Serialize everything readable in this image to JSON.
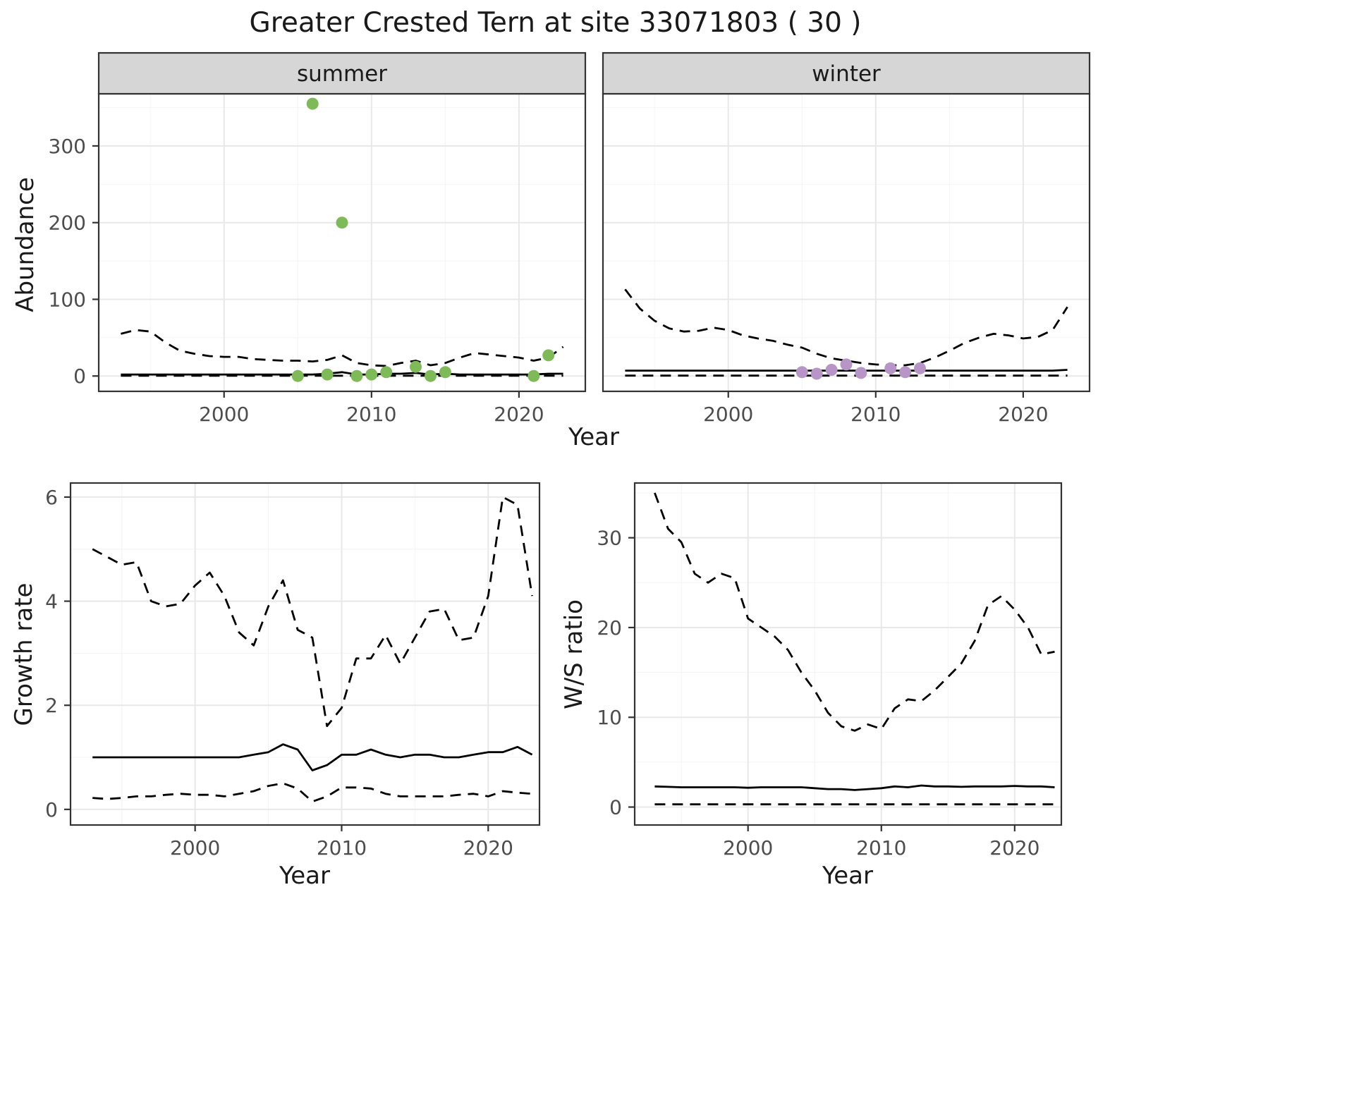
{
  "figure": {
    "title": "Greater Crested Tern at site 33071803 ( 30 )"
  },
  "theme": {
    "background": "#ffffff",
    "panel_bg": "#ffffff",
    "panel_border": "#333333",
    "grid_major": "#e8e8e8",
    "grid_minor": "#f4f4f4",
    "strip_fill": "#d6d6d6",
    "line_color": "#000000",
    "summer_point_color": "#7fba58",
    "winter_point_color": "#b795c7",
    "tick_text": "#4d4d4d",
    "text_color": "#1a1a1a"
  },
  "chart_data": [
    {
      "type": "line+scatter",
      "id": "abundance_summer",
      "facet_label": "summer",
      "xlabel": "Year",
      "ylabel": "Abundance",
      "x_domain": [
        1991.5,
        2024.5
      ],
      "y_domain": [
        -20,
        368
      ],
      "x_ticks": [
        2000,
        2010,
        2020
      ],
      "y_ticks": [
        0,
        100,
        200,
        300
      ],
      "x": [
        1993,
        1994,
        1995,
        1996,
        1997,
        1998,
        1999,
        2000,
        2001,
        2002,
        2003,
        2004,
        2005,
        2006,
        2007,
        2008,
        2009,
        2010,
        2011,
        2012,
        2013,
        2014,
        2015,
        2016,
        2017,
        2018,
        2019,
        2020,
        2021,
        2022,
        2023
      ],
      "series": [
        {
          "name": "upper_95ci",
          "style": "dashed",
          "values": [
            55,
            60,
            58,
            44,
            33,
            29,
            26,
            25,
            25,
            22,
            21,
            20,
            20,
            19,
            21,
            27,
            17,
            14,
            13,
            17,
            20,
            14,
            17,
            24,
            30,
            28,
            26,
            24,
            20,
            24,
            38
          ]
        },
        {
          "name": "median",
          "style": "solid",
          "values": [
            2,
            2,
            2,
            2,
            2,
            2,
            2,
            2,
            2,
            2,
            2,
            2,
            2,
            2,
            3,
            5,
            2,
            2,
            3,
            3,
            4,
            2,
            3,
            2,
            2,
            2,
            2,
            2,
            2,
            3,
            3
          ]
        },
        {
          "name": "lower_95ci",
          "style": "dashed",
          "values": [
            0.3,
            0.3,
            0.3,
            0.3,
            0.3,
            0.3,
            0.3,
            0.3,
            0.3,
            0.3,
            0.3,
            0.3,
            0.3,
            0.3,
            0.3,
            0.3,
            0.3,
            0.3,
            0.3,
            0.3,
            0.3,
            0.3,
            0.3,
            0.3,
            0.3,
            0.3,
            0.3,
            0.3,
            0.3,
            0.3,
            0.3
          ]
        }
      ],
      "points": {
        "name": "observed_counts",
        "color_key": "summer_point_color",
        "x": [
          2005,
          2006,
          2007,
          2008,
          2009,
          2010,
          2011,
          2013,
          2014,
          2015,
          2021,
          2022
        ],
        "y": [
          0,
          355,
          2,
          200,
          0,
          2,
          5,
          12,
          0,
          5,
          0,
          27
        ]
      }
    },
    {
      "type": "line+scatter",
      "id": "abundance_winter",
      "facet_label": "winter",
      "xlabel": "Year",
      "ylabel": "Abundance",
      "x_domain": [
        1991.5,
        2024.5
      ],
      "y_domain": [
        -20,
        368
      ],
      "x_ticks": [
        2000,
        2010,
        2020
      ],
      "y_ticks": [
        0,
        100,
        200,
        300
      ],
      "x": [
        1993,
        1994,
        1995,
        1996,
        1997,
        1998,
        1999,
        2000,
        2001,
        2002,
        2003,
        2004,
        2005,
        2006,
        2007,
        2008,
        2009,
        2010,
        2011,
        2012,
        2013,
        2014,
        2015,
        2016,
        2017,
        2018,
        2019,
        2020,
        2021,
        2022,
        2023
      ],
      "series": [
        {
          "name": "upper_95ci",
          "style": "dashed",
          "values": [
            113,
            88,
            72,
            62,
            58,
            59,
            63,
            60,
            53,
            49,
            46,
            41,
            37,
            29,
            23,
            20,
            17,
            15,
            14,
            14,
            17,
            24,
            33,
            43,
            50,
            55,
            53,
            49,
            51,
            60,
            90
          ]
        },
        {
          "name": "median",
          "style": "solid",
          "values": [
            7,
            7,
            7,
            7,
            7,
            7,
            7,
            7,
            7,
            7,
            7,
            7,
            7,
            7,
            7,
            7,
            7,
            7,
            7,
            7,
            7,
            7,
            7,
            7,
            7,
            7,
            7,
            7,
            7,
            7,
            8
          ]
        },
        {
          "name": "lower_95ci",
          "style": "dashed",
          "values": [
            0.5,
            0.5,
            0.5,
            0.5,
            0.5,
            0.5,
            0.5,
            0.5,
            0.5,
            0.5,
            0.5,
            0.5,
            0.5,
            0.5,
            0.5,
            0.5,
            0.5,
            0.5,
            0.5,
            0.5,
            0.5,
            0.5,
            0.5,
            0.5,
            0.5,
            0.5,
            0.5,
            0.5,
            0.5,
            0.5,
            0.5
          ]
        }
      ],
      "points": {
        "name": "observed_counts",
        "color_key": "winter_point_color",
        "x": [
          2005,
          2006,
          2007,
          2008,
          2009,
          2011,
          2012,
          2013
        ],
        "y": [
          5,
          3,
          8,
          15,
          4,
          10,
          5,
          10
        ]
      }
    },
    {
      "type": "line",
      "id": "growth_rate",
      "facet_label": "",
      "xlabel": "Year",
      "ylabel": "Growth rate",
      "x_domain": [
        1991.5,
        2023.5
      ],
      "y_domain": [
        -0.3,
        6.27
      ],
      "x_ticks": [
        2000,
        2010,
        2020
      ],
      "y_ticks": [
        0,
        2,
        4,
        6
      ],
      "x": [
        1993,
        1994,
        1995,
        1996,
        1997,
        1998,
        1999,
        2000,
        2001,
        2002,
        2003,
        2004,
        2005,
        2006,
        2007,
        2008,
        2009,
        2010,
        2011,
        2012,
        2013,
        2014,
        2015,
        2016,
        2017,
        2018,
        2019,
        2020,
        2021,
        2022,
        2023
      ],
      "series": [
        {
          "name": "upper_95ci",
          "style": "dashed",
          "values": [
            5.0,
            4.85,
            4.7,
            4.75,
            4.0,
            3.9,
            3.95,
            4.3,
            4.55,
            4.1,
            3.4,
            3.15,
            3.9,
            4.4,
            3.45,
            3.3,
            1.6,
            1.95,
            2.9,
            2.9,
            3.35,
            2.8,
            3.3,
            3.8,
            3.85,
            3.25,
            3.3,
            4.1,
            6.0,
            5.85,
            4.1
          ]
        },
        {
          "name": "median",
          "style": "solid",
          "values": [
            1.0,
            1.0,
            1.0,
            1.0,
            1.0,
            1.0,
            1.0,
            1.0,
            1.0,
            1.0,
            1.0,
            1.05,
            1.1,
            1.25,
            1.15,
            0.75,
            0.85,
            1.05,
            1.05,
            1.15,
            1.05,
            1.0,
            1.05,
            1.05,
            1.0,
            1.0,
            1.05,
            1.1,
            1.1,
            1.2,
            1.05
          ]
        },
        {
          "name": "lower_95ci",
          "style": "dashed",
          "values": [
            0.22,
            0.2,
            0.22,
            0.25,
            0.25,
            0.28,
            0.3,
            0.28,
            0.28,
            0.25,
            0.3,
            0.35,
            0.45,
            0.5,
            0.4,
            0.15,
            0.25,
            0.42,
            0.42,
            0.4,
            0.3,
            0.25,
            0.25,
            0.25,
            0.25,
            0.28,
            0.3,
            0.25,
            0.35,
            0.32,
            0.3
          ]
        }
      ]
    },
    {
      "type": "line",
      "id": "ws_ratio",
      "facet_label": "",
      "xlabel": "Year",
      "ylabel": "W/S ratio",
      "x_domain": [
        1991.5,
        2023.5
      ],
      "y_domain": [
        -2,
        36.1
      ],
      "x_ticks": [
        2000,
        2010,
        2020
      ],
      "y_ticks": [
        0,
        10,
        20,
        30
      ],
      "x": [
        1993,
        1994,
        1995,
        1996,
        1997,
        1998,
        1999,
        2000,
        2001,
        2002,
        2003,
        2004,
        2005,
        2006,
        2007,
        2008,
        2009,
        2010,
        2011,
        2012,
        2013,
        2014,
        2015,
        2016,
        2017,
        2018,
        2019,
        2020,
        2021,
        2022,
        2023
      ],
      "series": [
        {
          "name": "upper_95ci",
          "style": "dashed",
          "values": [
            35,
            31,
            29.5,
            26,
            25,
            26,
            25.5,
            21,
            20,
            19,
            17.5,
            15,
            13,
            10.5,
            9,
            8.5,
            9.2,
            8.7,
            11,
            12,
            11.8,
            13,
            14.5,
            16,
            18.5,
            22.5,
            23.5,
            22,
            20,
            17,
            17.3
          ]
        },
        {
          "name": "median",
          "style": "solid",
          "values": [
            2.3,
            2.25,
            2.2,
            2.2,
            2.2,
            2.2,
            2.2,
            2.15,
            2.2,
            2.2,
            2.2,
            2.2,
            2.1,
            2.0,
            2.0,
            1.9,
            2.0,
            2.1,
            2.3,
            2.2,
            2.4,
            2.3,
            2.3,
            2.25,
            2.3,
            2.3,
            2.3,
            2.35,
            2.3,
            2.3,
            2.2
          ]
        },
        {
          "name": "lower_95ci",
          "style": "dashed",
          "values": [
            0.3,
            0.3,
            0.3,
            0.3,
            0.3,
            0.3,
            0.3,
            0.3,
            0.3,
            0.3,
            0.3,
            0.3,
            0.3,
            0.3,
            0.3,
            0.3,
            0.3,
            0.3,
            0.3,
            0.3,
            0.3,
            0.3,
            0.3,
            0.3,
            0.3,
            0.3,
            0.3,
            0.3,
            0.3,
            0.3,
            0.3
          ]
        }
      ]
    }
  ]
}
